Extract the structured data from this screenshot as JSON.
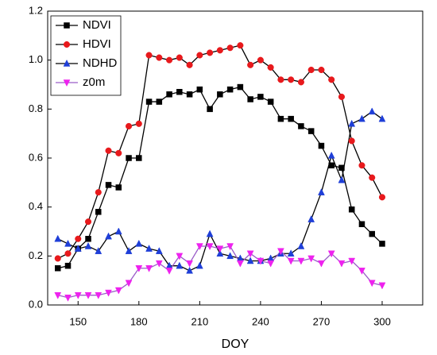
{
  "chart_data": {
    "type": "line",
    "xlabel": "DOY",
    "x": [
      140,
      145,
      150,
      155,
      160,
      165,
      170,
      175,
      180,
      185,
      190,
      195,
      200,
      205,
      210,
      215,
      220,
      225,
      230,
      235,
      240,
      245,
      250,
      255,
      260,
      265,
      270,
      275,
      280,
      285,
      290,
      295,
      300
    ],
    "series": [
      {
        "name": "NDVI",
        "color": "#000000",
        "line_color": "#000000",
        "marker": "square",
        "values": [
          0.15,
          0.16,
          0.23,
          0.27,
          0.38,
          0.49,
          0.48,
          0.6,
          0.6,
          0.83,
          0.83,
          0.86,
          0.87,
          0.86,
          0.88,
          0.8,
          0.86,
          0.88,
          0.89,
          0.84,
          0.85,
          0.83,
          0.76,
          0.76,
          0.73,
          0.71,
          0.65,
          0.57,
          0.56,
          0.39,
          0.33,
          0.29,
          0.25
        ]
      },
      {
        "name": "HDVI",
        "color": "#e8191c",
        "line_color": "#000000",
        "marker": "circle",
        "values": [
          0.19,
          0.21,
          0.27,
          0.34,
          0.46,
          0.63,
          0.62,
          0.73,
          0.74,
          1.02,
          1.01,
          1.0,
          1.01,
          0.98,
          1.02,
          1.03,
          1.04,
          1.05,
          1.06,
          0.98,
          1.0,
          0.97,
          0.92,
          0.92,
          0.91,
          0.96,
          0.96,
          0.92,
          0.85,
          0.67,
          0.57,
          0.52,
          0.44
        ]
      },
      {
        "name": "NDHD",
        "color": "#1f3fd8",
        "line_color": "#000000",
        "marker": "triangle",
        "values": [
          0.27,
          0.25,
          0.23,
          0.24,
          0.22,
          0.28,
          0.3,
          0.22,
          0.25,
          0.23,
          0.22,
          0.16,
          0.16,
          0.14,
          0.16,
          0.29,
          0.21,
          0.2,
          0.19,
          0.18,
          0.18,
          0.19,
          0.21,
          0.21,
          0.24,
          0.35,
          0.46,
          0.61,
          0.51,
          0.74,
          0.76,
          0.79,
          0.76
        ]
      },
      {
        "name": "z0m",
        "color": "#ee22ee",
        "line_color": "#9a5cc8",
        "marker": "triangle-down",
        "values": [
          0.04,
          0.03,
          0.04,
          0.04,
          0.04,
          0.05,
          0.06,
          0.09,
          0.15,
          0.15,
          0.17,
          0.14,
          0.2,
          0.17,
          0.24,
          0.24,
          0.23,
          0.24,
          0.17,
          0.21,
          0.18,
          0.17,
          0.22,
          0.18,
          0.18,
          0.19,
          0.17,
          0.21,
          0.17,
          0.18,
          0.14,
          0.09,
          0.08
        ]
      }
    ],
    "xlim": [
      135,
      320
    ],
    "xticks": [
      150,
      180,
      210,
      240,
      270,
      300
    ],
    "ylim": [
      0,
      1.2
    ],
    "yticks": [
      {
        "value": 0,
        "label": "0.0"
      },
      {
        "value": 0.2,
        "label": "0.2"
      },
      {
        "value": 0.4,
        "label": "0.4"
      },
      {
        "value": 0.6,
        "label": "0.6"
      },
      {
        "value": 0.8,
        "label": "0.8"
      },
      {
        "value": 1.0,
        "label": "1.0"
      },
      {
        "value": 1.2,
        "label": "1.2"
      }
    ],
    "grid": false,
    "legend": "upper left"
  }
}
